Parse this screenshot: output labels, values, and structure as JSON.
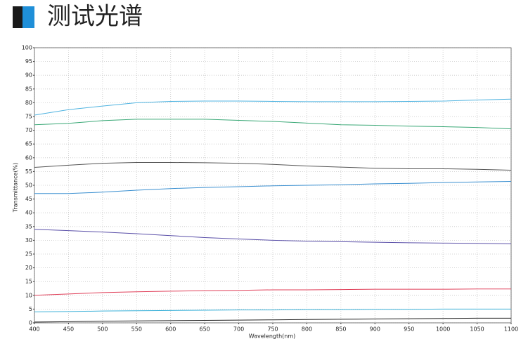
{
  "chart_data": {
    "type": "line",
    "title": "测试光谱",
    "x_label": "Wavelength(nm)",
    "y_label": "Transmittance(%)",
    "x": [
      400,
      450,
      500,
      550,
      600,
      650,
      700,
      750,
      800,
      850,
      900,
      950,
      1000,
      1050,
      1100
    ],
    "series": [
      {
        "color": "#4fb3e0",
        "values": [
          75.5,
          77.5,
          78.8,
          80,
          80.5,
          80.6,
          80.6,
          80.5,
          80.4,
          80.4,
          80.4,
          80.5,
          80.6,
          81,
          81.3
        ]
      },
      {
        "color": "#3aa876",
        "values": [
          72,
          72.5,
          73.5,
          74,
          74,
          74,
          73.6,
          73.2,
          72.6,
          72,
          71.8,
          71.5,
          71.3,
          71,
          70.5
        ]
      },
      {
        "color": "#555555",
        "values": [
          56.5,
          57.3,
          58,
          58.3,
          58.3,
          58.2,
          58,
          57.6,
          57,
          56.6,
          56.2,
          56,
          56,
          55.8,
          55.5
        ]
      },
      {
        "color": "#3a8fd0",
        "values": [
          47,
          47,
          47.5,
          48.2,
          48.8,
          49.2,
          49.5,
          49.8,
          50,
          50.2,
          50.5,
          50.7,
          51,
          51.2,
          51.4
        ]
      },
      {
        "color": "#5a4fa8",
        "values": [
          34,
          33.5,
          33,
          32.4,
          31.7,
          31,
          30.5,
          30,
          29.7,
          29.5,
          29.3,
          29.1,
          29,
          28.9,
          28.7
        ]
      },
      {
        "color": "#e0405a",
        "values": [
          10,
          10.5,
          11,
          11.3,
          11.5,
          11.7,
          11.8,
          12,
          12,
          12.1,
          12.2,
          12.2,
          12.2,
          12.3,
          12.3
        ]
      },
      {
        "color": "#3ab0d8",
        "values": [
          4,
          4.1,
          4.3,
          4.4,
          4.5,
          4.6,
          4.7,
          4.7,
          4.8,
          4.8,
          4.9,
          4.9,
          5,
          5,
          5
        ]
      },
      {
        "color": "#222222",
        "values": [
          0.3,
          0.4,
          0.6,
          0.7,
          0.8,
          0.9,
          1,
          1.1,
          1.2,
          1.3,
          1.4,
          1.5,
          1.6,
          1.7,
          1.7
        ]
      }
    ],
    "xlim": [
      400,
      1100
    ],
    "xticks": [
      400,
      450,
      500,
      550,
      600,
      650,
      700,
      750,
      800,
      850,
      900,
      950,
      1000,
      1050,
      1100
    ],
    "ylim": [
      0,
      100
    ],
    "yticks": [
      0,
      5,
      10,
      15,
      20,
      25,
      30,
      35,
      40,
      45,
      50,
      55,
      60,
      65,
      70,
      75,
      80,
      85,
      90,
      95,
      100
    ],
    "grid": true
  }
}
